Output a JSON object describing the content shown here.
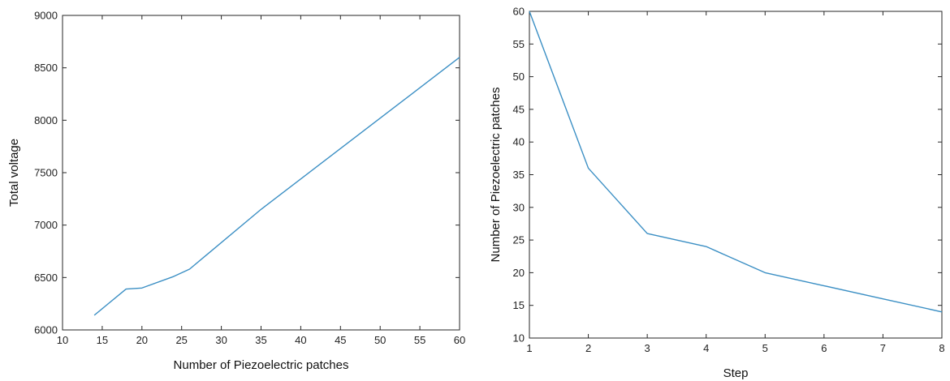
{
  "chart_data": [
    {
      "type": "line",
      "title": "",
      "xlabel": "Number of Piezoelectric patches",
      "ylabel": "Total voltage",
      "xlim": [
        10,
        60
      ],
      "ylim": [
        6000,
        9000
      ],
      "xticks": [
        10,
        15,
        20,
        25,
        30,
        35,
        40,
        45,
        50,
        55,
        60
      ],
      "yticks": [
        6000,
        6500,
        7000,
        7500,
        8000,
        8500,
        9000
      ],
      "grid": false,
      "line_color": "#3b8fc4",
      "series": [
        {
          "x": [
            14,
            18,
            20,
            24,
            26,
            35,
            60
          ],
          "y": [
            6140,
            6390,
            6400,
            6510,
            6580,
            7150,
            8600
          ]
        }
      ]
    },
    {
      "type": "line",
      "title": "",
      "xlabel": "Step",
      "ylabel": "Number of Piezoelectric patches",
      "xlim": [
        1,
        8
      ],
      "ylim": [
        10,
        60
      ],
      "xticks": [
        1,
        2,
        3,
        4,
        5,
        6,
        7,
        8
      ],
      "yticks": [
        10,
        15,
        20,
        25,
        30,
        35,
        40,
        45,
        50,
        55,
        60
      ],
      "grid": false,
      "line_color": "#3b8fc4",
      "series": [
        {
          "x": [
            1,
            2,
            3,
            4,
            5,
            6,
            7,
            8
          ],
          "y": [
            60,
            36,
            26,
            24,
            20,
            18,
            16,
            14
          ]
        }
      ]
    }
  ]
}
